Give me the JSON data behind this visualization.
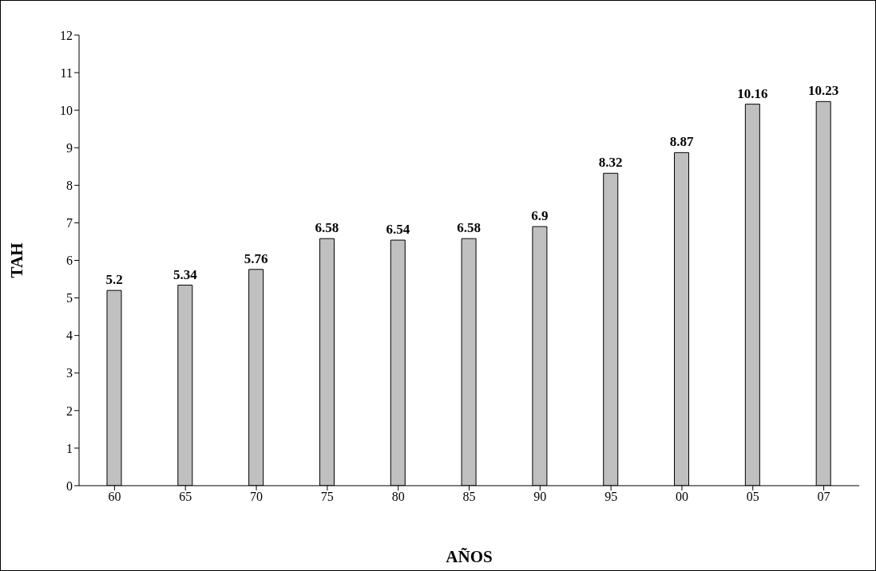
{
  "chart_data": {
    "type": "bar",
    "xlabel": "AÑOS",
    "ylabel": "TAH",
    "categories": [
      "60",
      "65",
      "70",
      "75",
      "80",
      "85",
      "90",
      "95",
      "00",
      "05",
      "07"
    ],
    "values": [
      5.2,
      5.34,
      5.76,
      6.58,
      6.54,
      6.58,
      6.9,
      8.32,
      8.87,
      10.16,
      10.23
    ],
    "color": "#c0c0c0",
    "ylim": [
      0,
      12
    ],
    "yticks": [
      0,
      1,
      2,
      3,
      4,
      5,
      6,
      7,
      8,
      9,
      10,
      11,
      12
    ],
    "data_labels": true,
    "grid": false,
    "legend": false
  }
}
